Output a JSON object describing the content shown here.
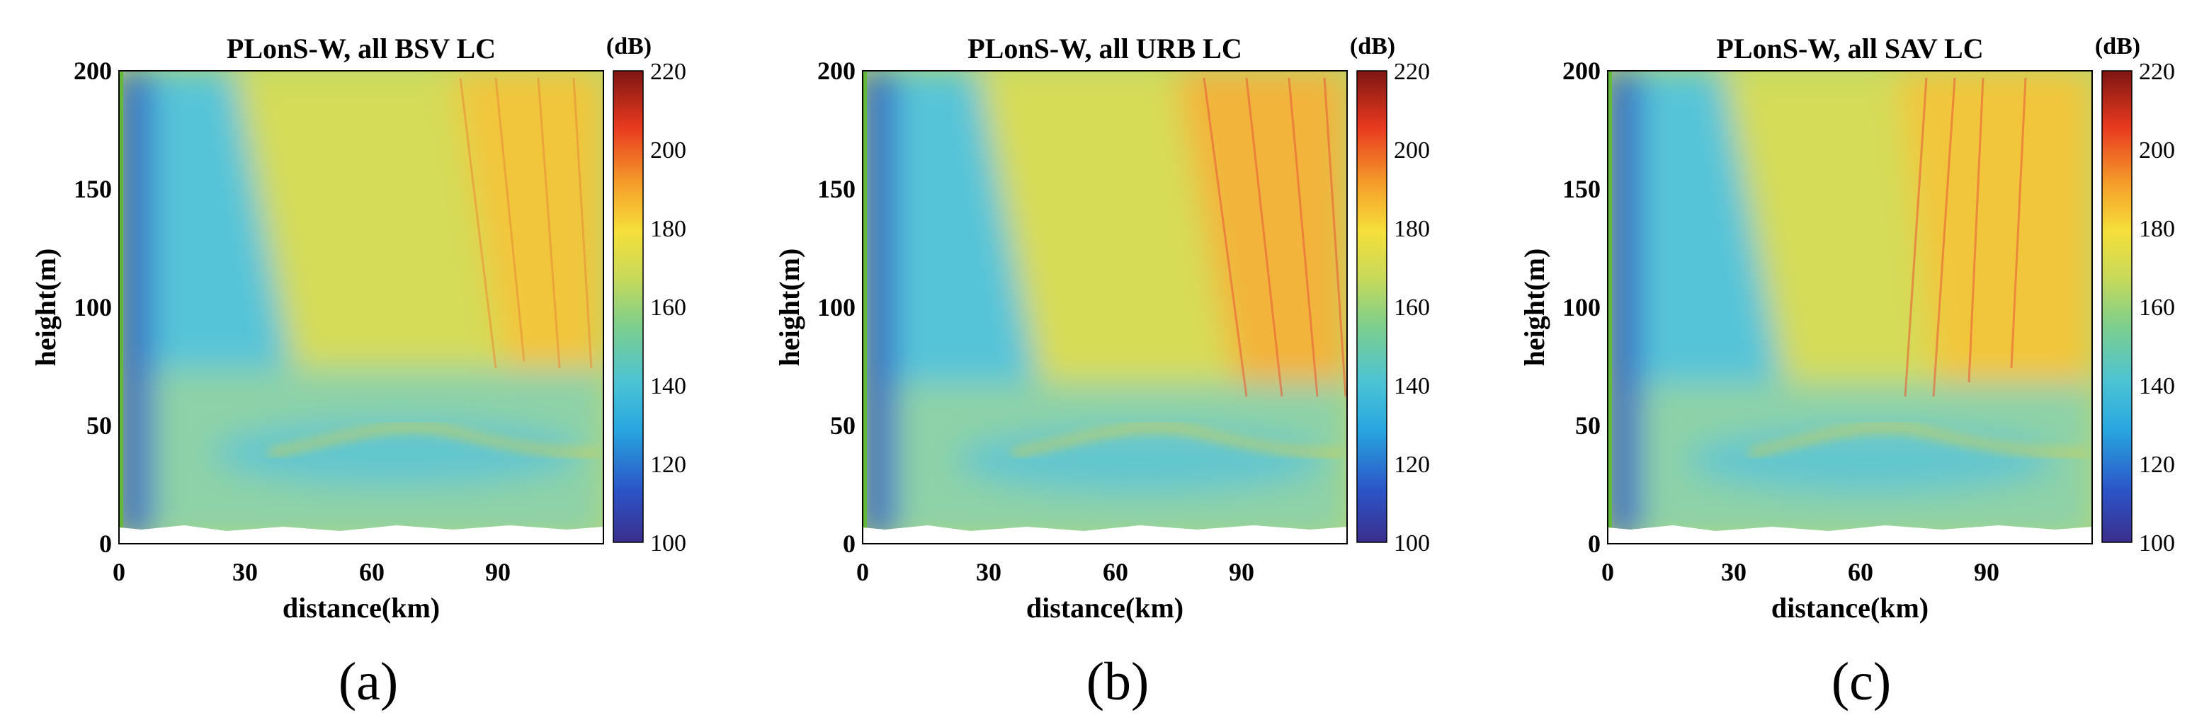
{
  "chart_data": [
    {
      "type": "heatmap",
      "title": "PLonS-W, all BSV LC",
      "caption": "(a)",
      "xlabel": "distance(km)",
      "ylabel": "height(m)",
      "xlim": [
        0,
        115
      ],
      "ylim": [
        0,
        200
      ],
      "xticks": [
        "0",
        "30",
        "60",
        "90"
      ],
      "yticks": [
        "0",
        "50",
        "100",
        "150",
        "200"
      ],
      "colorbar": {
        "unit": "(dB)",
        "range": [
          100,
          220
        ],
        "ticks": [
          "100",
          "120",
          "140",
          "160",
          "180",
          "200",
          "220"
        ]
      },
      "grid": false,
      "regions": [
        {
          "name": "near-transmitter column",
          "x": [
            1,
            8
          ],
          "y": [
            5,
            200
          ],
          "value": 112
        },
        {
          "name": "lower trapping layer",
          "x": [
            8,
            115
          ],
          "y": [
            5,
            75
          ],
          "value": 145
        },
        {
          "name": "upper field",
          "x": [
            20,
            115
          ],
          "y": [
            75,
            200
          ],
          "value": 168
        },
        {
          "name": "far-range upper band",
          "x": [
            85,
            115
          ],
          "y": [
            60,
            200
          ],
          "value": 180
        }
      ]
    },
    {
      "type": "heatmap",
      "title": "PLonS-W, all URB LC",
      "caption": "(b)",
      "xlabel": "distance(km)",
      "ylabel": "height(m)",
      "xlim": [
        0,
        115
      ],
      "ylim": [
        0,
        200
      ],
      "xticks": [
        "0",
        "30",
        "60",
        "90"
      ],
      "yticks": [
        "0",
        "50",
        "100",
        "150",
        "200"
      ],
      "colorbar": {
        "unit": "(dB)",
        "range": [
          100,
          220
        ],
        "ticks": [
          "100",
          "120",
          "140",
          "160",
          "180",
          "200",
          "220"
        ]
      },
      "grid": false,
      "regions": [
        {
          "name": "near-transmitter column",
          "x": [
            1,
            8
          ],
          "y": [
            5,
            200
          ],
          "value": 112
        },
        {
          "name": "lower trapping layer",
          "x": [
            8,
            115
          ],
          "y": [
            5,
            75
          ],
          "value": 146
        },
        {
          "name": "upper field",
          "x": [
            20,
            115
          ],
          "y": [
            75,
            200
          ],
          "value": 170
        },
        {
          "name": "far-range upper band",
          "x": [
            80,
            115
          ],
          "y": [
            80,
            200
          ],
          "value": 186
        }
      ]
    },
    {
      "type": "heatmap",
      "title": "PLonS-W, all SAV LC",
      "caption": "(c)",
      "xlabel": "distance(km)",
      "ylabel": "height(m)",
      "xlim": [
        0,
        115
      ],
      "ylim": [
        0,
        200
      ],
      "xticks": [
        "0",
        "30",
        "60",
        "90"
      ],
      "yticks": [
        "0",
        "50",
        "100",
        "150",
        "200"
      ],
      "colorbar": {
        "unit": "(dB)",
        "range": [
          100,
          220
        ],
        "ticks": [
          "100",
          "120",
          "140",
          "160",
          "180",
          "200",
          "220"
        ]
      },
      "grid": false,
      "regions": [
        {
          "name": "near-transmitter column",
          "x": [
            1,
            8
          ],
          "y": [
            5,
            200
          ],
          "value": 112
        },
        {
          "name": "lower trapping layer",
          "x": [
            8,
            115
          ],
          "y": [
            5,
            75
          ],
          "value": 145
        },
        {
          "name": "upper field",
          "x": [
            20,
            115
          ],
          "y": [
            75,
            200
          ],
          "value": 168
        },
        {
          "name": "far-range upper band",
          "x": [
            70,
            115
          ],
          "y": [
            80,
            200
          ],
          "value": 180
        }
      ]
    }
  ],
  "colors": {
    "colormap": [
      "#3b2e8c",
      "#2b54c8",
      "#28a7e0",
      "#4cc3d4",
      "#7ecf8c",
      "#c8d95a",
      "#f5e03a",
      "#f59e2a",
      "#e83a1f",
      "#7e1512"
    ]
  }
}
